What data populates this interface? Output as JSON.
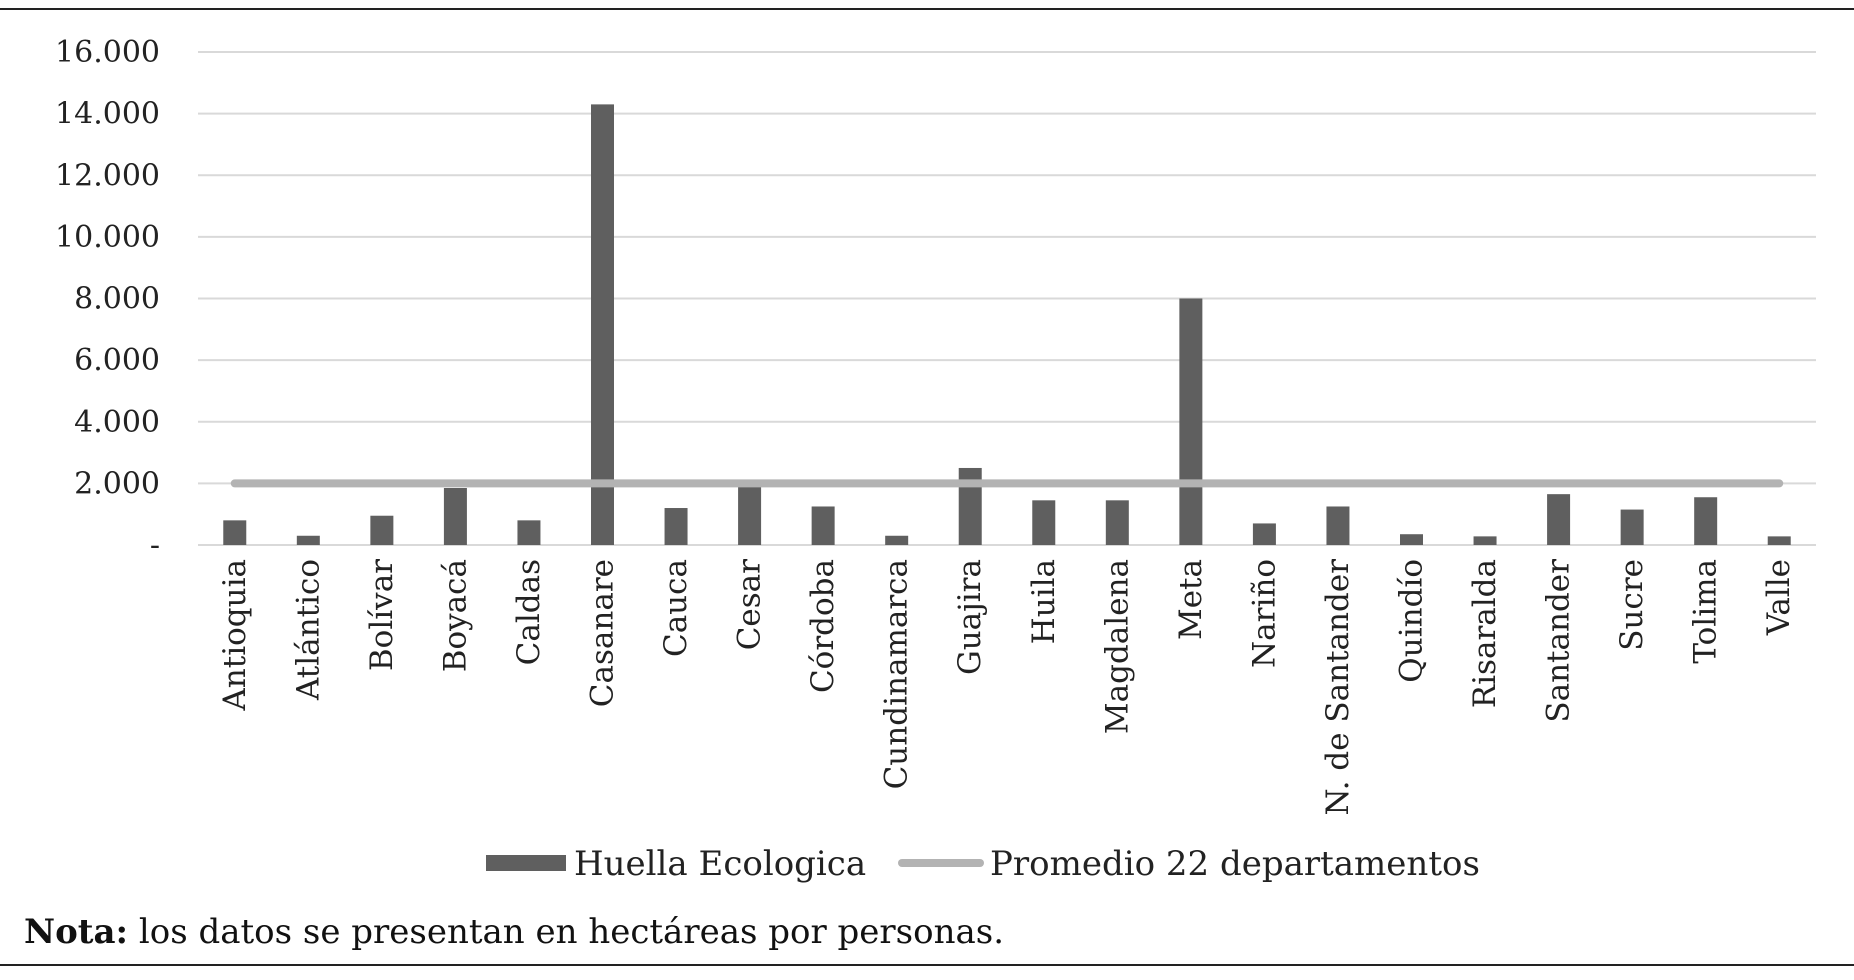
{
  "chart_data": {
    "type": "bar",
    "categories": [
      "Antioquia",
      "Atlántico",
      "Bolívar",
      "Boyacá",
      "Caldas",
      "Casanare",
      "Cauca",
      "Cesar",
      "Córdoba",
      "Cundinamarca",
      "Guajira",
      "Huila",
      "Magdalena",
      "Meta",
      "Nariño",
      "N. de Santander",
      "Quindío",
      "Risaralda",
      "Santander",
      "Sucre",
      "Tolima",
      "Valle"
    ],
    "series": [
      {
        "name": "Huella Ecologica",
        "type": "bar",
        "color": "#5f5f5f",
        "values": [
          800,
          300,
          950,
          1850,
          800,
          14300,
          1200,
          1950,
          1250,
          300,
          2500,
          1450,
          1450,
          8000,
          700,
          1250,
          350,
          280,
          1650,
          1150,
          1550,
          280
        ]
      },
      {
        "name": "Promedio 22 departamentos",
        "type": "line",
        "color": "#b3b3b3",
        "value": 2000
      }
    ],
    "yticks": [
      {
        "value": 0,
        "label": "-"
      },
      {
        "value": 2000,
        "label": "2.000"
      },
      {
        "value": 4000,
        "label": "4.000"
      },
      {
        "value": 6000,
        "label": "6.000"
      },
      {
        "value": 8000,
        "label": "8.000"
      },
      {
        "value": 10000,
        "label": "10.000"
      },
      {
        "value": 12000,
        "label": "12.000"
      },
      {
        "value": 14000,
        "label": "14.000"
      },
      {
        "value": 16000,
        "label": "16.000"
      }
    ],
    "ylim": [
      0,
      16000
    ],
    "grid": true,
    "legend_position": "bottom",
    "gridline_color": "#d9d9d9"
  },
  "note": {
    "label": "Nota:",
    "text": " los datos se presentan en hectáreas por personas."
  }
}
